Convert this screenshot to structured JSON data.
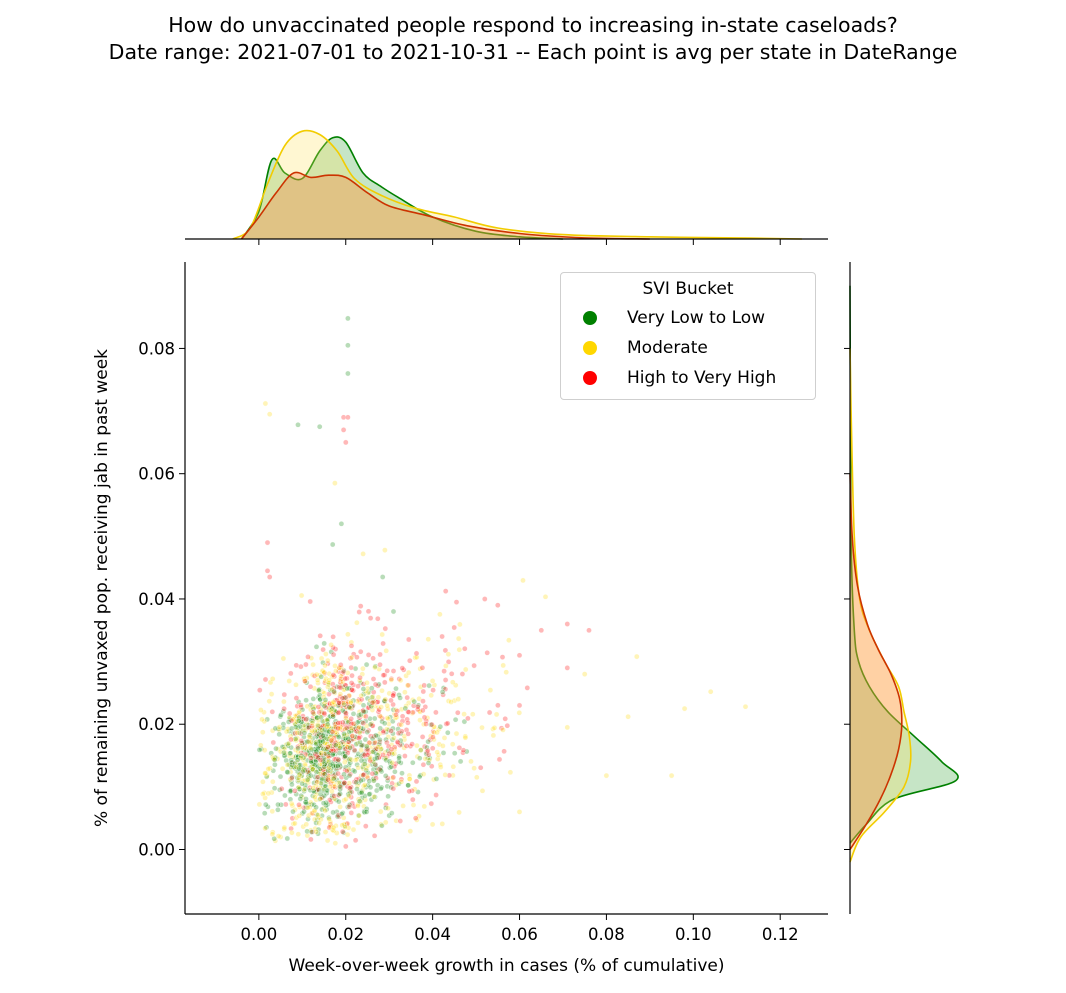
{
  "chart_data": {
    "type": "scatter",
    "title_lines": [
      "How do unvaccinated people respond to increasing in-state caseloads?",
      "Date range: 2021-07-01 to 2021-10-31 -- Each point is avg per state in DateRange"
    ],
    "xlabel": "Week-over-week growth in cases (% of cumulative)",
    "ylabel": "% of remaining unvaxed pop. receiving jab in past week",
    "xlim": [
      -0.017,
      0.131
    ],
    "ylim": [
      -0.0103,
      0.0938
    ],
    "x_ticks": [
      "0.00",
      "0.02",
      "0.04",
      "0.06",
      "0.08",
      "0.10",
      "0.12"
    ],
    "y_ticks": [
      "0.00",
      "0.02",
      "0.04",
      "0.06",
      "0.08"
    ],
    "legend": {
      "title": "SVI Bucket",
      "placement": "top-right",
      "entries": [
        "Very Low to Low",
        "Moderate",
        "High to Very High"
      ]
    },
    "marginal_x_kde": "top",
    "marginal_y_kde": "right",
    "series": [
      {
        "name": "Very Low to Low",
        "color": "#008000",
        "x_mean": 0.016,
        "x_sd": 0.011,
        "y_mean": 0.015,
        "y_sd": 0.0055,
        "kde_x": [
          [
            -0.004,
            0
          ],
          [
            0,
            0.25
          ],
          [
            0.003,
            0.72
          ],
          [
            0.006,
            0.6
          ],
          [
            0.01,
            0.55
          ],
          [
            0.014,
            0.8
          ],
          [
            0.017,
            0.92
          ],
          [
            0.02,
            0.88
          ],
          [
            0.024,
            0.6
          ],
          [
            0.028,
            0.48
          ],
          [
            0.032,
            0.38
          ],
          [
            0.04,
            0.2
          ],
          [
            0.05,
            0.07
          ],
          [
            0.06,
            0.02
          ],
          [
            0.07,
            0
          ]
        ],
        "kde_y": [
          [
            0.001,
            0
          ],
          [
            0.004,
            0.15
          ],
          [
            0.008,
            0.4
          ],
          [
            0.011,
            0.98
          ],
          [
            0.014,
            0.85
          ],
          [
            0.018,
            0.6
          ],
          [
            0.022,
            0.35
          ],
          [
            0.026,
            0.18
          ],
          [
            0.03,
            0.08
          ],
          [
            0.035,
            0.04
          ],
          [
            0.05,
            0.01
          ],
          [
            0.09,
            0
          ]
        ],
        "outliers": [
          [
            0.0205,
            0.0848
          ],
          [
            0.0205,
            0.0805
          ],
          [
            0.0205,
            0.076
          ],
          [
            0.009,
            0.0678
          ],
          [
            0.014,
            0.0675
          ],
          [
            0.019,
            0.052
          ],
          [
            0.017,
            0.0487
          ],
          [
            0.0285,
            0.0435
          ],
          [
            0.031,
            0.038
          ]
        ]
      },
      {
        "name": "Moderate",
        "color": "#FFD700",
        "x_mean": 0.018,
        "x_sd": 0.016,
        "y_mean": 0.016,
        "y_sd": 0.0075,
        "kde_x": [
          [
            -0.006,
            0
          ],
          [
            -0.002,
            0.1
          ],
          [
            0.002,
            0.5
          ],
          [
            0.006,
            0.85
          ],
          [
            0.01,
            0.98
          ],
          [
            0.014,
            0.95
          ],
          [
            0.018,
            0.8
          ],
          [
            0.022,
            0.55
          ],
          [
            0.028,
            0.4
          ],
          [
            0.036,
            0.28
          ],
          [
            0.045,
            0.2
          ],
          [
            0.055,
            0.1
          ],
          [
            0.07,
            0.04
          ],
          [
            0.09,
            0.02
          ],
          [
            0.11,
            0.01
          ],
          [
            0.125,
            0
          ]
        ],
        "kde_y": [
          [
            -0.002,
            0
          ],
          [
            0.002,
            0.1
          ],
          [
            0.006,
            0.32
          ],
          [
            0.01,
            0.5
          ],
          [
            0.014,
            0.56
          ],
          [
            0.018,
            0.55
          ],
          [
            0.022,
            0.5
          ],
          [
            0.026,
            0.45
          ],
          [
            0.03,
            0.32
          ],
          [
            0.035,
            0.18
          ],
          [
            0.04,
            0.09
          ],
          [
            0.05,
            0.04
          ],
          [
            0.07,
            0.01
          ],
          [
            0.08,
            0
          ]
        ],
        "outliers": [
          [
            0.0015,
            0.0712
          ],
          [
            0.0025,
            0.0695
          ],
          [
            0.0175,
            0.0585
          ],
          [
            0.024,
            0.0472
          ],
          [
            0.029,
            0.0478
          ],
          [
            0.098,
            0.0225
          ],
          [
            0.104,
            0.0252
          ],
          [
            0.112,
            0.0228
          ],
          [
            0.087,
            0.0308
          ],
          [
            0.075,
            0.028
          ],
          [
            0.085,
            0.0212
          ],
          [
            0.071,
            0.0195
          ],
          [
            0.095,
            0.0118
          ],
          [
            0.08,
            0.0118
          ],
          [
            0.06,
            0.006
          ],
          [
            0.04,
            0.004
          ],
          [
            0.005,
            0.002
          ]
        ]
      },
      {
        "name": "High to Very High",
        "color": "#FF0000",
        "x_mean": 0.022,
        "x_sd": 0.014,
        "y_mean": 0.019,
        "y_sd": 0.0075,
        "kde_x": [
          [
            -0.004,
            0
          ],
          [
            0,
            0.2
          ],
          [
            0.004,
            0.42
          ],
          [
            0.008,
            0.6
          ],
          [
            0.012,
            0.56
          ],
          [
            0.016,
            0.58
          ],
          [
            0.02,
            0.56
          ],
          [
            0.025,
            0.42
          ],
          [
            0.03,
            0.3
          ],
          [
            0.038,
            0.22
          ],
          [
            0.048,
            0.12
          ],
          [
            0.06,
            0.05
          ],
          [
            0.075,
            0.01
          ],
          [
            0.09,
            0
          ]
        ],
        "kde_y": [
          [
            0,
            0
          ],
          [
            0.004,
            0.15
          ],
          [
            0.008,
            0.28
          ],
          [
            0.012,
            0.38
          ],
          [
            0.016,
            0.45
          ],
          [
            0.02,
            0.48
          ],
          [
            0.024,
            0.46
          ],
          [
            0.028,
            0.38
          ],
          [
            0.032,
            0.26
          ],
          [
            0.036,
            0.16
          ],
          [
            0.042,
            0.07
          ],
          [
            0.05,
            0.02
          ],
          [
            0.06,
            0
          ]
        ],
        "outliers": [
          [
            0.0195,
            0.069
          ],
          [
            0.0205,
            0.069
          ],
          [
            0.0195,
            0.067
          ],
          [
            0.02,
            0.065
          ],
          [
            0.002,
            0.049
          ],
          [
            0.002,
            0.0445
          ],
          [
            0.0025,
            0.0435
          ],
          [
            0.0165,
            0.004
          ],
          [
            0.02,
            0.0005
          ],
          [
            0.0455,
            0.0395
          ],
          [
            0.052,
            0.04
          ],
          [
            0.055,
            0.039
          ],
          [
            0.071,
            0.036
          ],
          [
            0.071,
            0.029
          ],
          [
            0.076,
            0.035
          ],
          [
            0.065,
            0.035
          ],
          [
            0.06,
            0.031
          ],
          [
            0.06,
            0.023
          ]
        ]
      }
    ]
  }
}
